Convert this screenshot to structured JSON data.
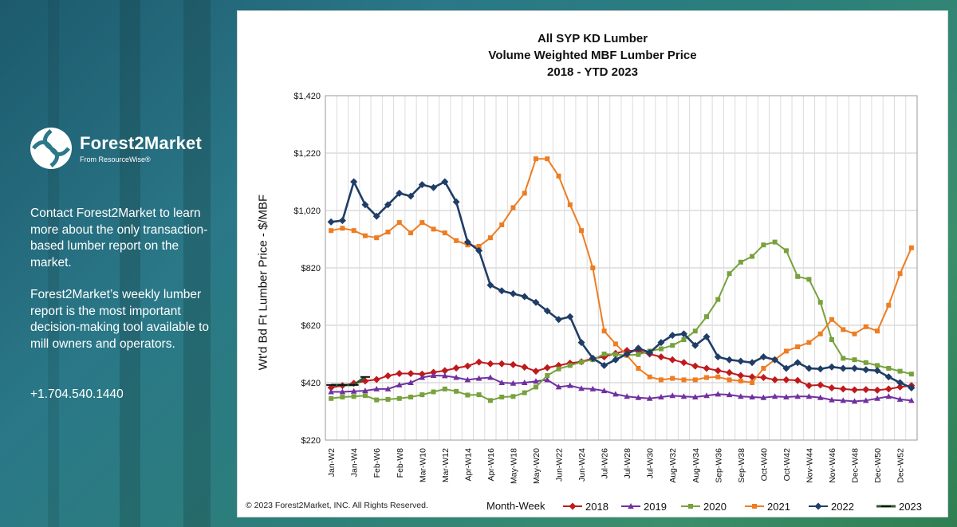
{
  "sidebar": {
    "logo_name": "Forest2Market",
    "logo_sub": "From ResourceWise®",
    "paragraph1": "Contact Forest2Market to learn more about the only transaction-based lumber report on the market.",
    "paragraph2": "Forest2Market’s weekly lumber report is the most important decision-making tool available to mill owners and operators.",
    "phone": "+1.704.540.1440"
  },
  "footer": {
    "copyright": "© 2023 Forest2Market, INC. All Rights Reserved."
  },
  "colors": {
    "2018": "#c0191d",
    "2019": "#7030a0",
    "2020": "#77a23c",
    "2021": "#ee7d22",
    "2022": "#1f3d66",
    "2023": "#2e5b2e"
  },
  "chart_data": {
    "type": "line",
    "title": [
      "All SYP KD Lumber",
      "Volume Weighted MBF Lumber Price",
      "2018 - YTD 2023"
    ],
    "xlabel": "Month-Week",
    "ylabel": "Wt'd Bd Ft Lumber Price - $/MBF",
    "ylim": [
      220,
      1420
    ],
    "yticks": [
      "$220",
      "$420",
      "$620",
      "$820",
      "$1,020",
      "$1,220",
      "$1,420"
    ],
    "grid": true,
    "legend_position": "bottom",
    "xtick_labels": [
      "Jan-W2",
      "Jan-W4",
      "Feb-W6",
      "Feb-W8",
      "Mar-W10",
      "Mar-W12",
      "Apr-W14",
      "Apr-W16",
      "May-W18",
      "May-W20",
      "Jun-W22",
      "Jun-W24",
      "Jul-W26",
      "Jul-W28",
      "Jul-W30",
      "Aug-W32",
      "Aug-W34",
      "Sep-W36",
      "Sep-W38",
      "Oct-W40",
      "Oct-W42",
      "Nov-W44",
      "Nov-W46",
      "Dec-W48",
      "Dec-W50",
      "Dec-W52"
    ],
    "weeks": 52,
    "series": [
      {
        "name": "2018",
        "marker": "diamond",
        "values": [
          403,
          410,
          418,
          426,
          431,
          444,
          452,
          452,
          450,
          456,
          462,
          471,
          478,
          492,
          486,
          486,
          483,
          474,
          460,
          472,
          480,
          488,
          493,
          505,
          510,
          522,
          532,
          530,
          520,
          510,
          500,
          490,
          478,
          470,
          462,
          455,
          445,
          440,
          438,
          430,
          430,
          428,
          410,
          412,
          402,
          398,
          395,
          396,
          394,
          398,
          405,
          410
        ]
      },
      {
        "name": "2019",
        "marker": "triangle",
        "values": [
          388,
          388,
          390,
          392,
          398,
          398,
          412,
          420,
          438,
          445,
          444,
          438,
          430,
          435,
          438,
          420,
          418,
          420,
          425,
          430,
          405,
          410,
          400,
          398,
          392,
          380,
          372,
          368,
          365,
          370,
          375,
          372,
          370,
          375,
          380,
          378,
          372,
          370,
          368,
          372,
          370,
          372,
          372,
          368,
          360,
          358,
          355,
          358,
          365,
          372,
          362,
          358
        ]
      },
      {
        "name": "2020",
        "marker": "square",
        "values": [
          365,
          370,
          372,
          375,
          360,
          362,
          365,
          370,
          378,
          388,
          398,
          390,
          377,
          378,
          358,
          370,
          372,
          385,
          405,
          445,
          468,
          480,
          492,
          500,
          520,
          518,
          516,
          518,
          530,
          538,
          550,
          570,
          600,
          650,
          710,
          800,
          840,
          860,
          900,
          910,
          880,
          790,
          780,
          700,
          570,
          505,
          500,
          490,
          480,
          470,
          460,
          450
        ]
      },
      {
        "name": "2021",
        "marker": "square",
        "values": [
          950,
          958,
          950,
          932,
          925,
          945,
          978,
          942,
          978,
          955,
          942,
          915,
          900,
          895,
          925,
          970,
          1030,
          1080,
          1200,
          1200,
          1140,
          1040,
          950,
          820,
          600,
          555,
          515,
          470,
          440,
          430,
          435,
          430,
          430,
          438,
          440,
          430,
          426,
          420,
          470,
          500,
          530,
          545,
          560,
          590,
          640,
          605,
          590,
          615,
          600,
          690,
          800,
          890
        ]
      },
      {
        "name": "2022",
        "marker": "diamond",
        "values": [
          980,
          985,
          1120,
          1040,
          1000,
          1040,
          1080,
          1070,
          1110,
          1100,
          1120,
          1050,
          910,
          880,
          760,
          740,
          730,
          720,
          700,
          670,
          640,
          650,
          560,
          505,
          480,
          500,
          520,
          540,
          525,
          560,
          585,
          590,
          550,
          580,
          510,
          500,
          495,
          490,
          510,
          500,
          470,
          490,
          470,
          468,
          475,
          470,
          470,
          465,
          462,
          440,
          420,
          402
        ]
      },
      {
        "name": "2023",
        "marker": "dash",
        "values": [
          412,
          412,
          412,
          440
        ]
      }
    ]
  }
}
